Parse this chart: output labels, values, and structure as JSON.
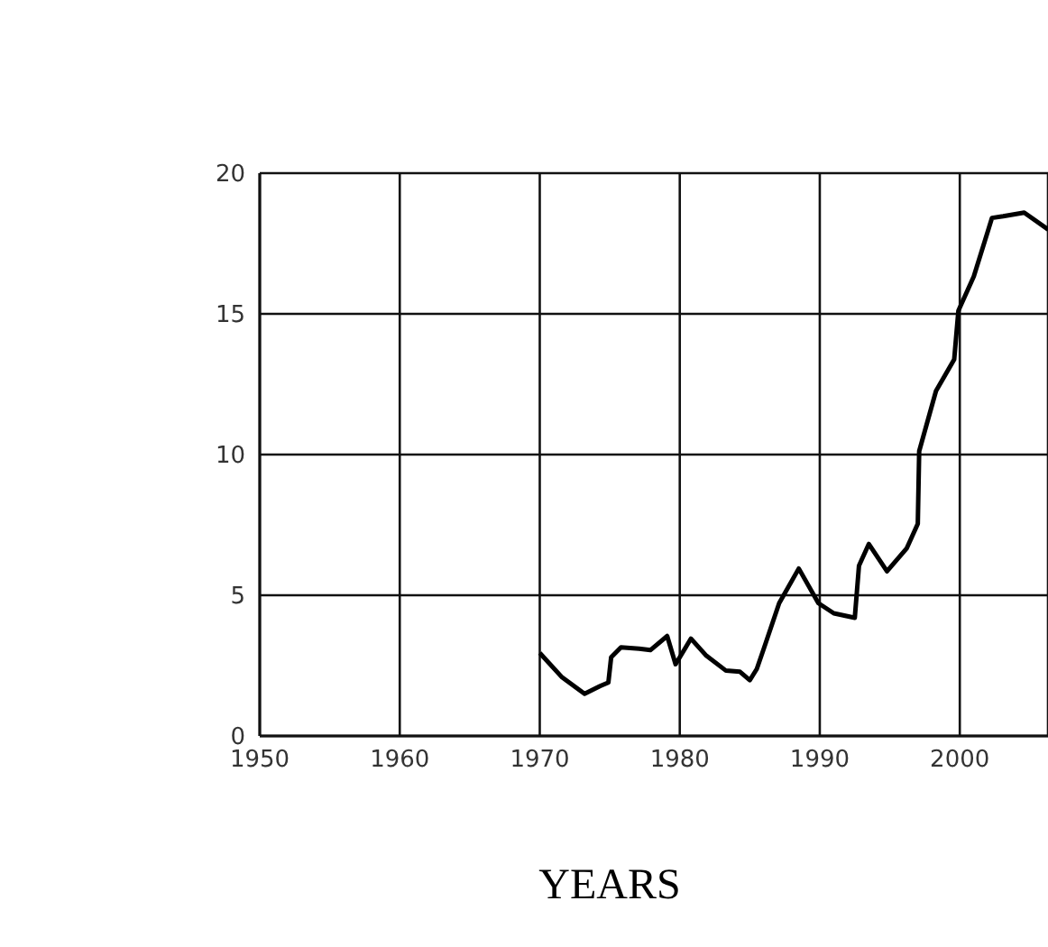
{
  "chart_data": {
    "type": "line",
    "xlabel": "YEARS",
    "x": [
      1970,
      1971.6,
      1973.2,
      1974.3,
      1974.9,
      1975.1,
      1975.8,
      1977.1,
      1977.9,
      1979.1,
      1979.7,
      1980.8,
      1981.9,
      1983.3,
      1984.3,
      1985,
      1985.5,
      1986,
      1987.1,
      1988.5,
      1989.9,
      1991,
      1992.5,
      1992.8,
      1993.5,
      1994.8,
      1996.2,
      1997,
      1997.1,
      1998.3,
      1999.6,
      1999.9,
      2001,
      2002.3,
      2003.1,
      2004.6,
      2006.3
    ],
    "series": [
      {
        "color": "#000000",
        "values": [
          2.95,
          2.08,
          1.5,
          1.77,
          1.9,
          2.8,
          3.15,
          3.1,
          3.05,
          3.55,
          2.55,
          3.46,
          2.85,
          2.32,
          2.28,
          1.98,
          2.38,
          3.1,
          4.72,
          5.95,
          4.72,
          4.36,
          4.2,
          6.05,
          6.82,
          5.85,
          6.66,
          7.54,
          10.12,
          12.26,
          13.38,
          15.11,
          16.33,
          18.41,
          18.47,
          18.6,
          18.0
        ]
      }
    ],
    "xlim": [
      1950,
      2006.3
    ],
    "xticks": [
      1950,
      1960,
      1970,
      1980,
      1990,
      2000
    ],
    "ylim": [
      0,
      20
    ],
    "yticks": [
      0,
      5,
      10,
      15,
      20
    ],
    "grid": true,
    "line_style": "solid"
  }
}
